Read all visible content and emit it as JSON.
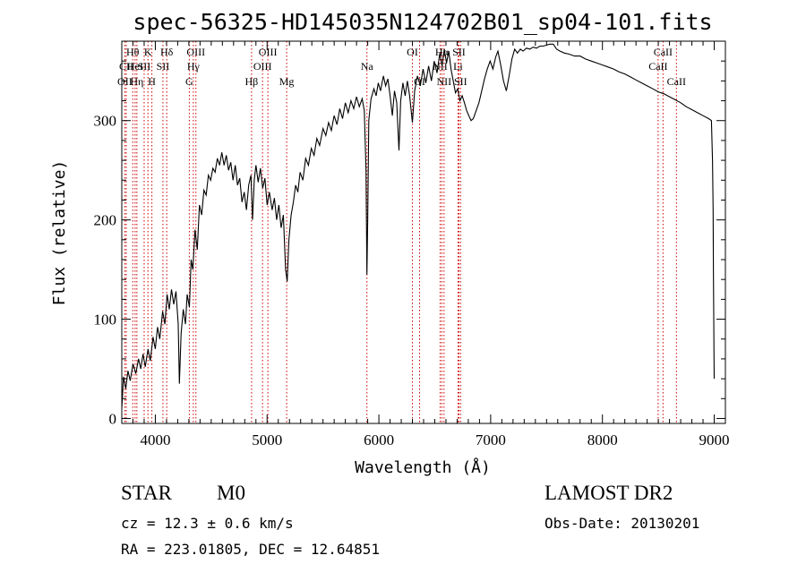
{
  "chart_data": {
    "type": "line",
    "title": "spec-56325-HD145035N124702B01_sp04-101.fits",
    "xlabel": "Wavelength (Å)",
    "ylabel": "Flux (relative)",
    "xlim": [
      3700,
      9100
    ],
    "ylim": [
      -5,
      380
    ],
    "x_ticks": [
      4000,
      5000,
      6000,
      7000,
      8000,
      9000
    ],
    "y_ticks": [
      0,
      100,
      200,
      300
    ],
    "grid": false,
    "series": [
      {
        "points": [
          [
            3700,
            10
          ],
          [
            3715,
            42
          ],
          [
            3735,
            30
          ],
          [
            3755,
            48
          ],
          [
            3775,
            38
          ],
          [
            3800,
            55
          ],
          [
            3825,
            45
          ],
          [
            3850,
            60
          ],
          [
            3870,
            50
          ],
          [
            3890,
            65
          ],
          [
            3910,
            52
          ],
          [
            3935,
            70
          ],
          [
            3955,
            58
          ],
          [
            3980,
            82
          ],
          [
            4000,
            70
          ],
          [
            4020,
            92
          ],
          [
            4040,
            80
          ],
          [
            4065,
            108
          ],
          [
            4085,
            95
          ],
          [
            4105,
            125
          ],
          [
            4125,
            110
          ],
          [
            4145,
            130
          ],
          [
            4165,
            115
          ],
          [
            4185,
            128
          ],
          [
            4205,
            95
          ],
          [
            4215,
            35
          ],
          [
            4230,
            85
          ],
          [
            4250,
            110
          ],
          [
            4270,
            95
          ],
          [
            4285,
            125
          ],
          [
            4305,
            112
          ],
          [
            4320,
            160
          ],
          [
            4335,
            150
          ],
          [
            4355,
            190
          ],
          [
            4375,
            170
          ],
          [
            4395,
            215
          ],
          [
            4415,
            205
          ],
          [
            4435,
            230
          ],
          [
            4455,
            225
          ],
          [
            4475,
            245
          ],
          [
            4495,
            240
          ],
          [
            4515,
            252
          ],
          [
            4535,
            248
          ],
          [
            4555,
            262
          ],
          [
            4575,
            255
          ],
          [
            4595,
            268
          ],
          [
            4615,
            255
          ],
          [
            4635,
            265
          ],
          [
            4655,
            250
          ],
          [
            4675,
            258
          ],
          [
            4695,
            240
          ],
          [
            4715,
            255
          ],
          [
            4735,
            235
          ],
          [
            4755,
            242
          ],
          [
            4775,
            218
          ],
          [
            4795,
            228
          ],
          [
            4815,
            210
          ],
          [
            4835,
            235
          ],
          [
            4855,
            245
          ],
          [
            4870,
            200
          ],
          [
            4885,
            240
          ],
          [
            4900,
            255
          ],
          [
            4920,
            238
          ],
          [
            4940,
            252
          ],
          [
            4960,
            232
          ],
          [
            4980,
            242
          ],
          [
            5000,
            215
          ],
          [
            5020,
            228
          ],
          [
            5045,
            210
          ],
          [
            5065,
            222
          ],
          [
            5085,
            200
          ],
          [
            5105,
            215
          ],
          [
            5125,
            192
          ],
          [
            5145,
            205
          ],
          [
            5165,
            150
          ],
          [
            5180,
            138
          ],
          [
            5195,
            180
          ],
          [
            5215,
            205
          ],
          [
            5235,
            218
          ],
          [
            5255,
            235
          ],
          [
            5275,
            228
          ],
          [
            5295,
            248
          ],
          [
            5320,
            240
          ],
          [
            5345,
            262
          ],
          [
            5370,
            255
          ],
          [
            5395,
            272
          ],
          [
            5420,
            265
          ],
          [
            5445,
            282
          ],
          [
            5470,
            275
          ],
          [
            5500,
            292
          ],
          [
            5525,
            285
          ],
          [
            5550,
            298
          ],
          [
            5575,
            290
          ],
          [
            5600,
            305
          ],
          [
            5625,
            296
          ],
          [
            5650,
            312
          ],
          [
            5675,
            302
          ],
          [
            5700,
            318
          ],
          [
            5725,
            308
          ],
          [
            5750,
            320
          ],
          [
            5775,
            312
          ],
          [
            5800,
            324
          ],
          [
            5825,
            314
          ],
          [
            5850,
            322
          ],
          [
            5870,
            310
          ],
          [
            5885,
            250
          ],
          [
            5893,
            145
          ],
          [
            5900,
            200
          ],
          [
            5910,
            300
          ],
          [
            5930,
            322
          ],
          [
            5955,
            332
          ],
          [
            5975,
            325
          ],
          [
            5995,
            338
          ],
          [
            6015,
            330
          ],
          [
            6040,
            345
          ],
          [
            6060,
            335
          ],
          [
            6080,
            342
          ],
          [
            6100,
            325
          ],
          [
            6120,
            305
          ],
          [
            6140,
            330
          ],
          [
            6160,
            318
          ],
          [
            6180,
            270
          ],
          [
            6195,
            320
          ],
          [
            6215,
            338
          ],
          [
            6235,
            325
          ],
          [
            6255,
            340
          ],
          [
            6275,
            325
          ],
          [
            6300,
            298
          ],
          [
            6320,
            330
          ],
          [
            6345,
            345
          ],
          [
            6370,
            335
          ],
          [
            6395,
            352
          ],
          [
            6420,
            338
          ],
          [
            6445,
            355
          ],
          [
            6470,
            340
          ],
          [
            6495,
            360
          ],
          [
            6520,
            348
          ],
          [
            6545,
            368
          ],
          [
            6565,
            355
          ],
          [
            6585,
            372
          ],
          [
            6605,
            358
          ],
          [
            6625,
            370
          ],
          [
            6645,
            352
          ],
          [
            6665,
            340
          ],
          [
            6685,
            328
          ],
          [
            6705,
            332
          ],
          [
            6725,
            320
          ],
          [
            6745,
            325
          ],
          [
            6765,
            318
          ],
          [
            6785,
            310
          ],
          [
            6805,
            305
          ],
          [
            6825,
            300
          ],
          [
            6845,
            302
          ],
          [
            6870,
            310
          ],
          [
            6895,
            318
          ],
          [
            6920,
            330
          ],
          [
            6945,
            342
          ],
          [
            6970,
            352
          ],
          [
            6995,
            360
          ],
          [
            7020,
            352
          ],
          [
            7045,
            364
          ],
          [
            7065,
            370
          ],
          [
            7090,
            356
          ],
          [
            7115,
            340
          ],
          [
            7140,
            330
          ],
          [
            7165,
            345
          ],
          [
            7190,
            362
          ],
          [
            7215,
            372
          ],
          [
            7240,
            368
          ],
          [
            7265,
            372
          ],
          [
            7290,
            370
          ],
          [
            7320,
            373
          ],
          [
            7350,
            372
          ],
          [
            7380,
            374
          ],
          [
            7410,
            373
          ],
          [
            7440,
            375
          ],
          [
            7470,
            375
          ],
          [
            7500,
            376
          ],
          [
            7530,
            377
          ],
          [
            7560,
            377
          ],
          [
            7590,
            372
          ],
          [
            7620,
            370
          ],
          [
            7660,
            368
          ],
          [
            7700,
            367
          ],
          [
            7750,
            365
          ],
          [
            7800,
            365
          ],
          [
            7850,
            362
          ],
          [
            7900,
            360
          ],
          [
            7950,
            358
          ],
          [
            8000,
            356
          ],
          [
            8050,
            354
          ],
          [
            8100,
            352
          ],
          [
            8150,
            349
          ],
          [
            8200,
            347
          ],
          [
            8250,
            344
          ],
          [
            8300,
            341
          ],
          [
            8350,
            338
          ],
          [
            8400,
            335
          ],
          [
            8450,
            332
          ],
          [
            8500,
            329
          ],
          [
            8550,
            327
          ],
          [
            8600,
            324
          ],
          [
            8650,
            321
          ],
          [
            8700,
            318
          ],
          [
            8750,
            314
          ],
          [
            8800,
            311
          ],
          [
            8850,
            308
          ],
          [
            8900,
            305
          ],
          [
            8950,
            302
          ],
          [
            8975,
            300
          ],
          [
            8985,
            260
          ],
          [
            8990,
            210
          ],
          [
            8993,
            150
          ],
          [
            8996,
            100
          ],
          [
            8998,
            60
          ],
          [
            9000,
            40
          ]
        ]
      }
    ],
    "lines": [
      {
        "name": "Hθ",
        "wl": 3798,
        "row": 0
      },
      {
        "name": "CII",
        "wl": 3740,
        "row": 1
      },
      {
        "name": "HeI",
        "wl": 3819,
        "row": 1
      },
      {
        "name": "SII",
        "wl": 3900,
        "row": 1
      },
      {
        "name": "OII",
        "wl": 3727,
        "row": 2
      },
      {
        "name": "Hη",
        "wl": 3835,
        "row": 2
      },
      {
        "name": "K",
        "wl": 3934,
        "row": 0
      },
      {
        "name": "H",
        "wl": 3969,
        "row": 2
      },
      {
        "name": "Hδ",
        "wl": 4102,
        "row": 0
      },
      {
        "name": "SII",
        "wl": 4068,
        "row": 1
      },
      {
        "name": "OIII",
        "wl": 4363,
        "row": 0
      },
      {
        "name": "Hγ",
        "wl": 4340,
        "row": 1
      },
      {
        "name": "G",
        "wl": 4304,
        "row": 2
      },
      {
        "name": "Hβ",
        "wl": 4861,
        "row": 2
      },
      {
        "name": "OIII",
        "wl": 5007,
        "row": 0
      },
      {
        "name": "OIII",
        "wl": 4959,
        "row": 1
      },
      {
        "name": "Mg",
        "wl": 5175,
        "row": 2
      },
      {
        "name": "Na",
        "wl": 5893,
        "row": 1
      },
      {
        "name": "OI",
        "wl": 6300,
        "row": 0
      },
      {
        "name": "OI",
        "wl": 6364,
        "row": 2
      },
      {
        "name": "Hα",
        "wl": 6563,
        "row": 0
      },
      {
        "name": "NII",
        "wl": 6548,
        "row": 1
      },
      {
        "name": "NII",
        "wl": 6583,
        "row": 2
      },
      {
        "name": "SII",
        "wl": 6716,
        "row": 0
      },
      {
        "name": "Li",
        "wl": 6708,
        "row": 1
      },
      {
        "name": "SII",
        "wl": 6731,
        "row": 2
      },
      {
        "name": "CaII",
        "wl": 8542,
        "row": 0
      },
      {
        "name": "CaII",
        "wl": 8498,
        "row": 1
      },
      {
        "name": "CaII",
        "wl": 8662,
        "row": 2
      }
    ]
  },
  "info": {
    "object_class": "STAR",
    "subclass": "M0",
    "survey": "LAMOST DR2",
    "redshift": "cz = 12.3 ± 0.6 km/s",
    "obs_date": "Obs-Date: 20130201",
    "coords": "RA = 223.01805, DEC =  12.64851"
  },
  "colors": {
    "spectrum": "#000000",
    "line_marker": "#cc0000",
    "frame": "#000000"
  }
}
